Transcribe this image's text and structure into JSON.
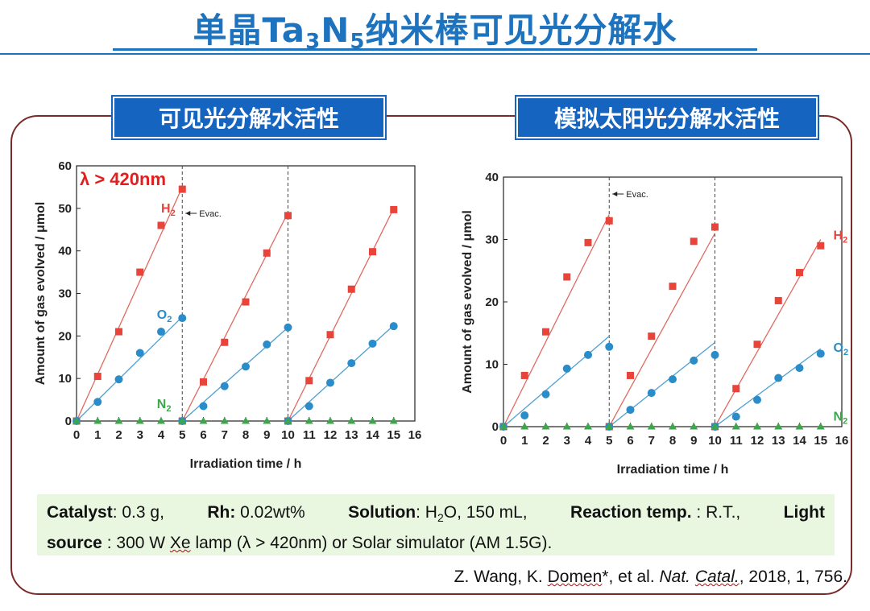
{
  "page": {
    "title_main": "单晶Ta",
    "title_sub3": "3",
    "title_n": "N",
    "title_sub5": "5",
    "title_tail": "纳米棒可见光分解水"
  },
  "sections": {
    "left": "可见光分解水活性",
    "right": "模拟太阳光分解水活性"
  },
  "info": {
    "catalyst_label": "Catalyst",
    "catalyst_value": ": 0.3 g,",
    "rh_label": "Rh:",
    "rh_value": "0.02wt%",
    "solution_label": "Solution",
    "solution_value_pre": ": H",
    "solution_sub": "2",
    "solution_value_post": "O, 150 mL,",
    "reaction_label": "Reaction temp.",
    "reaction_value": ": R.T.,",
    "light_label": "Light",
    "source_label": "source",
    "source_value_pre": ": 300 W ",
    "source_xe": "Xe",
    "source_value_post": " lamp (λ > 420nm) or Solar simulator (AM 1.5G)."
  },
  "citation": {
    "pre": "Z. Wang, K. ",
    "author_domen": "Domen",
    "mid": "*, et al. ",
    "journal_a": "Nat. ",
    "journal_b": "Catal.",
    "post": ", 2018, 1, 756."
  },
  "colors": {
    "h2": "#e8443a",
    "o2": "#2a8cc8",
    "n2": "#3da64a",
    "h2line": "#e06a60",
    "o2line": "#4fa0d0",
    "title": "#1e73be"
  },
  "chart_data": [
    {
      "type": "scatter",
      "title": "λ > 420nm",
      "xlabel": "Irradiation time / h",
      "ylabel": "Amount of gas evolved / μmol",
      "xlim": [
        0,
        16
      ],
      "ylim": [
        0,
        60
      ],
      "xticks": [
        0,
        1,
        2,
        3,
        4,
        5,
        6,
        7,
        8,
        9,
        10,
        11,
        12,
        13,
        14,
        15,
        16
      ],
      "yticks": [
        0,
        10,
        20,
        30,
        40,
        50,
        60
      ],
      "evac_times": [
        5,
        10
      ],
      "evac_label": "Evac.",
      "series": [
        {
          "name": "H",
          "sub": "2",
          "marker": "square",
          "color": "h2",
          "x": [
            0,
            1,
            2,
            3,
            4,
            5,
            5,
            6,
            7,
            8,
            9,
            10,
            10,
            11,
            12,
            13,
            14,
            15
          ],
          "y": [
            0,
            10.5,
            21,
            35,
            46,
            54.5,
            0,
            9.2,
            18.5,
            28,
            39.5,
            48.3,
            0,
            9.5,
            20.3,
            31,
            39.8,
            49.7
          ]
        },
        {
          "name": "O",
          "sub": "2",
          "marker": "circle",
          "color": "o2",
          "x": [
            0,
            1,
            2,
            3,
            4,
            5,
            5,
            6,
            7,
            8,
            9,
            10,
            10,
            11,
            12,
            13,
            14,
            15
          ],
          "y": [
            0,
            4.5,
            9.8,
            16,
            21,
            24.2,
            0,
            3.5,
            8.2,
            12.8,
            18,
            22,
            0,
            3.5,
            9,
            13.6,
            18.2,
            22.3
          ]
        },
        {
          "name": "N",
          "sub": "2",
          "marker": "triangle",
          "color": "n2",
          "x": [
            0,
            1,
            2,
            3,
            4,
            5,
            6,
            7,
            8,
            9,
            10,
            11,
            12,
            13,
            14,
            15
          ],
          "y": [
            0,
            0,
            0,
            0,
            0,
            0,
            0,
            0,
            0,
            0,
            0,
            0,
            0,
            0,
            0,
            0
          ]
        }
      ],
      "fit_lines": [
        {
          "color": "h2line",
          "x": [
            0,
            5
          ],
          "y": [
            0,
            55
          ]
        },
        {
          "color": "h2line",
          "x": [
            5,
            10
          ],
          "y": [
            0,
            49
          ]
        },
        {
          "color": "h2line",
          "x": [
            10,
            15
          ],
          "y": [
            0,
            50
          ]
        },
        {
          "color": "o2line",
          "x": [
            0,
            5
          ],
          "y": [
            0,
            24.5
          ]
        },
        {
          "color": "o2line",
          "x": [
            5,
            10
          ],
          "y": [
            0,
            22
          ]
        },
        {
          "color": "o2line",
          "x": [
            10,
            15
          ],
          "y": [
            0,
            22.5
          ]
        }
      ],
      "labels": [
        {
          "series": "H",
          "x": 4.0,
          "y": 49
        },
        {
          "series": "O",
          "x": 3.8,
          "y": 24
        },
        {
          "series": "N",
          "x": 3.8,
          "y": 3
        }
      ]
    },
    {
      "type": "scatter",
      "title": "",
      "xlabel": "Irradiation time / h",
      "ylabel": "Amount of gas evolved / μmol",
      "xlim": [
        0,
        16
      ],
      "ylim": [
        0,
        40
      ],
      "xticks": [
        0,
        1,
        2,
        3,
        4,
        5,
        6,
        7,
        8,
        9,
        10,
        11,
        12,
        13,
        14,
        15,
        16
      ],
      "yticks": [
        0,
        10,
        20,
        30,
        40
      ],
      "evac_times": [
        5,
        10
      ],
      "evac_label": "Evac.",
      "series": [
        {
          "name": "H",
          "sub": "2",
          "marker": "square",
          "color": "h2",
          "x": [
            0,
            1,
            2,
            3,
            4,
            5,
            5,
            6,
            7,
            8,
            9,
            10,
            10,
            11,
            12,
            13,
            14,
            15
          ],
          "y": [
            0,
            8.2,
            15.2,
            24,
            29.5,
            33,
            0,
            8.2,
            14.5,
            22.5,
            29.7,
            32,
            0,
            6.1,
            13.2,
            20.2,
            24.7,
            29
          ]
        },
        {
          "name": "O",
          "sub": "2",
          "marker": "circle",
          "color": "o2",
          "x": [
            0,
            1,
            2,
            3,
            4,
            5,
            5,
            6,
            7,
            8,
            9,
            10,
            10,
            11,
            12,
            13,
            14,
            15
          ],
          "y": [
            0,
            1.8,
            5.2,
            9.3,
            11.5,
            12.8,
            0,
            2.7,
            5.4,
            7.6,
            10.6,
            11.5,
            0,
            1.6,
            4.3,
            7.8,
            9.4,
            11.7
          ]
        },
        {
          "name": "N",
          "sub": "2",
          "marker": "triangle",
          "color": "n2",
          "x": [
            0,
            1,
            2,
            3,
            4,
            5,
            6,
            7,
            8,
            9,
            10,
            11,
            12,
            13,
            14,
            15
          ],
          "y": [
            0,
            0,
            0,
            0,
            0,
            0,
            0,
            0,
            0,
            0,
            0,
            0,
            0,
            0,
            0,
            0
          ]
        }
      ],
      "fit_lines": [
        {
          "color": "h2line",
          "x": [
            0,
            5
          ],
          "y": [
            0,
            34
          ]
        },
        {
          "color": "h2line",
          "x": [
            5,
            10
          ],
          "y": [
            0,
            31
          ]
        },
        {
          "color": "h2line",
          "x": [
            10,
            15
          ],
          "y": [
            0,
            30
          ]
        },
        {
          "color": "o2line",
          "x": [
            0,
            5
          ],
          "y": [
            0,
            14.5
          ]
        },
        {
          "color": "o2line",
          "x": [
            5,
            10
          ],
          "y": [
            0,
            13.5
          ]
        },
        {
          "color": "o2line",
          "x": [
            10,
            15
          ],
          "y": [
            0,
            12.5
          ]
        }
      ],
      "labels": [
        {
          "series": "H",
          "x": 15.6,
          "y": 30
        },
        {
          "series": "O",
          "x": 15.6,
          "y": 12
        },
        {
          "series": "N",
          "x": 15.6,
          "y": 1
        }
      ]
    }
  ]
}
